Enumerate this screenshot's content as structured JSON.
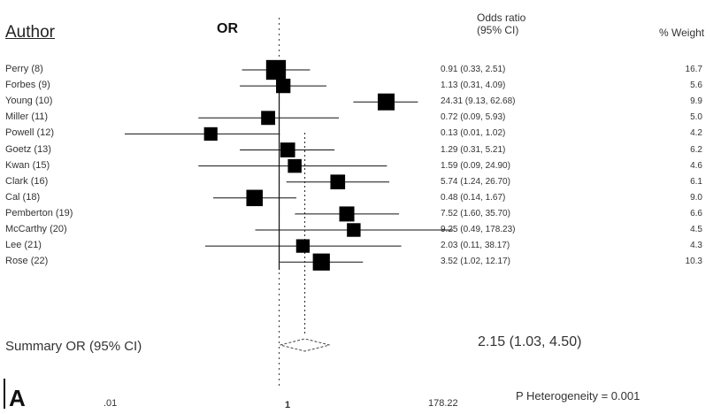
{
  "header": {
    "author_col": "Author",
    "or_col": "OR",
    "oddsratio_col": "Odds ratio\n(95% CI)",
    "weight_col": "% Weight"
  },
  "chart_data": {
    "type": "forest",
    "x_scale": "log",
    "xlim": [
      0.01,
      178.22
    ],
    "null_line": 1,
    "pooled_line": 2.15,
    "x_ticks": [
      ".01",
      "1",
      "178.22"
    ],
    "studies": [
      {
        "author": "Perry (8)",
        "or": 0.91,
        "lo": 0.33,
        "hi": 2.51,
        "ci_text": "0.91 (0.33, 2.51)",
        "weight": "16.7"
      },
      {
        "author": "Forbes (9)",
        "or": 1.13,
        "lo": 0.31,
        "hi": 4.09,
        "ci_text": "1.13 (0.31, 4.09)",
        "weight": "5.6"
      },
      {
        "author": "Young (10)",
        "or": 24.31,
        "lo": 9.13,
        "hi": 62.68,
        "ci_text": "24.31 (9.13, 62.68)",
        "weight": "9.9"
      },
      {
        "author": "Miller (11)",
        "or": 0.72,
        "lo": 0.09,
        "hi": 5.93,
        "ci_text": "0.72 (0.09, 5.93)",
        "weight": "5.0"
      },
      {
        "author": "Powell (12)",
        "or": 0.13,
        "lo": 0.01,
        "hi": 1.02,
        "ci_text": "0.13 (0.01, 1.02)",
        "weight": "4.2"
      },
      {
        "author": "Goetz (13)",
        "or": 1.29,
        "lo": 0.31,
        "hi": 5.21,
        "ci_text": "1.29 (0.31, 5.21)",
        "weight": "6.2"
      },
      {
        "author": "Kwan (15)",
        "or": 1.59,
        "lo": 0.09,
        "hi": 24.9,
        "ci_text": "1.59 (0.09, 24.90)",
        "weight": "4.6"
      },
      {
        "author": "Clark (16)",
        "or": 5.74,
        "lo": 1.24,
        "hi": 26.7,
        "ci_text": "5.74 (1.24, 26.70)",
        "weight": "6.1"
      },
      {
        "author": "Cal (18)",
        "or": 0.48,
        "lo": 0.14,
        "hi": 1.67,
        "ci_text": "0.48 (0.14, 1.67)",
        "weight": "9.0"
      },
      {
        "author": "Pemberton (19)",
        "or": 7.52,
        "lo": 1.6,
        "hi": 35.7,
        "ci_text": "7.52 (1.60, 35.70)",
        "weight": "6.6"
      },
      {
        "author": "McCarthy (20)",
        "or": 9.25,
        "lo": 0.49,
        "hi": 178.23,
        "ci_text": "9.25 (0.49, 178.23)",
        "weight": "4.5"
      },
      {
        "author": "Lee (21)",
        "or": 2.03,
        "lo": 0.11,
        "hi": 38.17,
        "ci_text": "2.03 (0.11, 38.17)",
        "weight": "4.3"
      },
      {
        "author": "Rose (22)",
        "or": 3.52,
        "lo": 1.02,
        "hi": 12.17,
        "ci_text": "3.52 (1.02, 12.17)",
        "weight": "10.3"
      }
    ],
    "summary": {
      "label": "Summary OR (95% CI)",
      "or": 2.15,
      "lo": 1.03,
      "hi": 4.5,
      "text": "2.15 (1.03, 4.50)"
    },
    "panel_label": "A",
    "heterogeneity": "P Heterogeneity = 0.001"
  }
}
